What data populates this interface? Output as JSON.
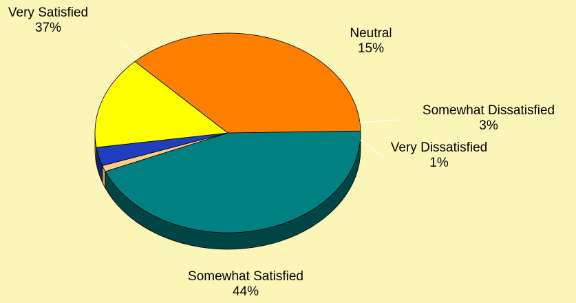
{
  "chart_data": {
    "type": "pie",
    "style": "3d",
    "title": "",
    "slices": [
      {
        "label": "Somewhat Satisfied",
        "value": 44,
        "display": "44%",
        "color": "#008080",
        "side_color": "#004545"
      },
      {
        "label": "Very Dissatisfied",
        "value": 1,
        "display": "1%",
        "color": "#fccc88",
        "side_color": "#c89a55"
      },
      {
        "label": "Somewhat Dissatisfied",
        "value": 3,
        "display": "3%",
        "color": "#1f3fbf",
        "side_color": "#10226e"
      },
      {
        "label": "Neutral",
        "value": 15,
        "display": "15%",
        "color": "#ffff00",
        "side_color": "#a8a800"
      },
      {
        "label": "Very Satisfied",
        "value": 37,
        "display": "37%",
        "color": "#ff8000",
        "side_color": "#8a4500"
      }
    ]
  }
}
